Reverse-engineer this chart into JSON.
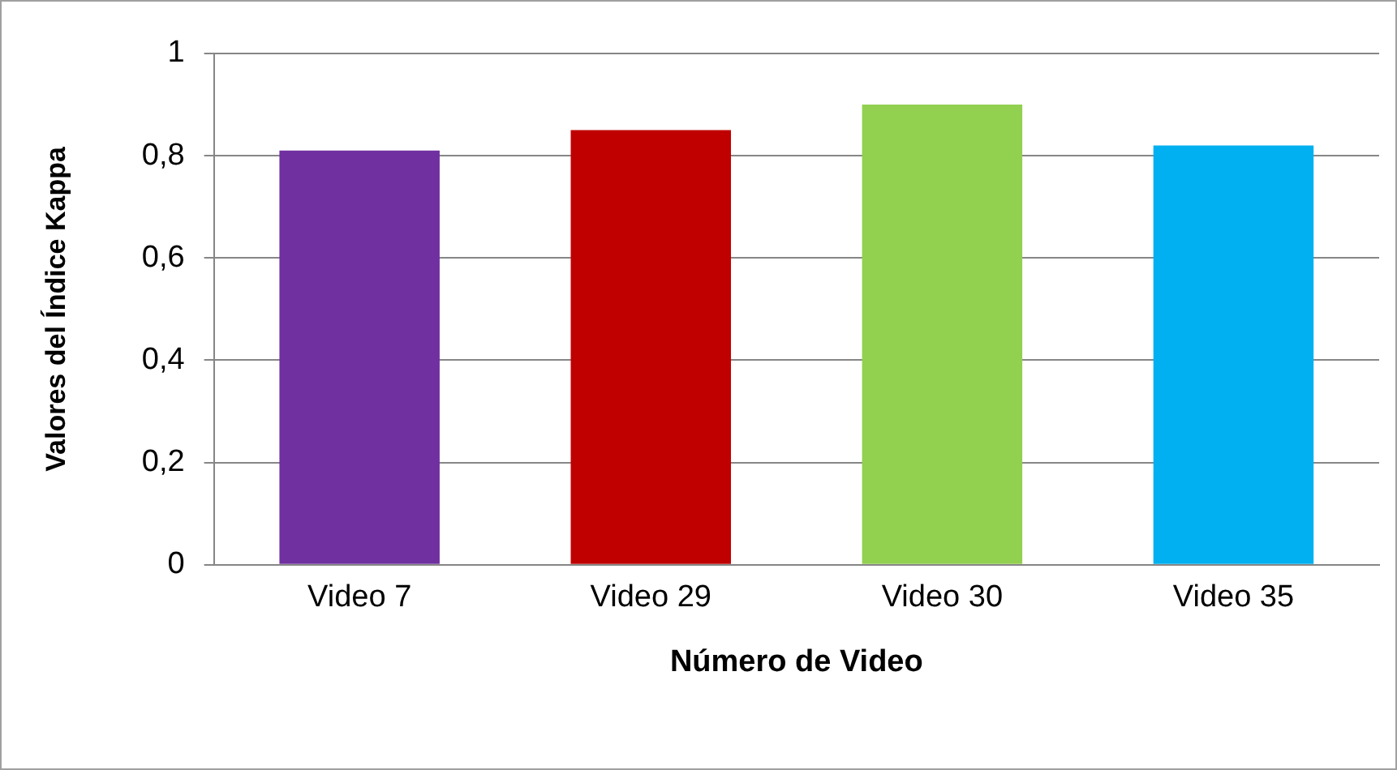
{
  "chart_data": {
    "type": "bar",
    "xlabel": "Número de Video",
    "ylabel": "Valores del Índice Kappa",
    "categories": [
      "Video 7",
      "Video 29",
      "Video 30",
      "Video 35"
    ],
    "values": [
      0.81,
      0.85,
      0.9,
      0.82
    ],
    "colors": [
      "#7030a0",
      "#c00000",
      "#92d050",
      "#00b0f0"
    ],
    "ylim": [
      0,
      1
    ],
    "yticks": [
      {
        "value": 0,
        "label": "0"
      },
      {
        "value": 0.2,
        "label": "0,2"
      },
      {
        "value": 0.4,
        "label": "0,4"
      },
      {
        "value": 0.6,
        "label": "0,6"
      },
      {
        "value": 0.8,
        "label": "0,8"
      },
      {
        "value": 1,
        "label": "1"
      }
    ],
    "grid": "y",
    "legend": false
  }
}
